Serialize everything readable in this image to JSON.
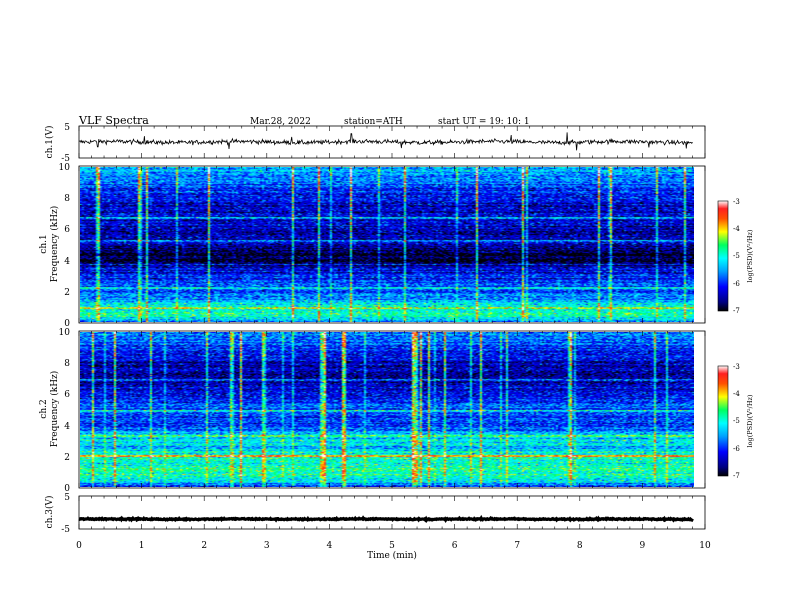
{
  "header": {
    "title": "VLF  Spectra",
    "date": "Mar.28, 2022",
    "station": "station=ATH",
    "start": "start  UT  =    19: 10: 1"
  },
  "chart_data": [
    {
      "type": "line",
      "name": "ch1-waveform",
      "ylabel": "ch.1(V)",
      "ylim": [
        -5,
        5
      ],
      "yticks": [
        "5",
        "-5"
      ],
      "x_range": [
        0,
        9.8
      ],
      "y_mean": 0,
      "y_noise": 0.7,
      "spikes": [
        {
          "x": 0.3,
          "y": -1.5
        },
        {
          "x": 1.05,
          "y": 1.8
        },
        {
          "x": 2.4,
          "y": -2.2
        },
        {
          "x": 3.4,
          "y": 1.6
        },
        {
          "x": 4.35,
          "y": 2.6
        },
        {
          "x": 5.15,
          "y": -1.9
        },
        {
          "x": 6.9,
          "y": 2.2
        },
        {
          "x": 7.8,
          "y": 3.0
        },
        {
          "x": 7.95,
          "y": -2.6
        },
        {
          "x": 9.1,
          "y": -1.7
        },
        {
          "x": 9.7,
          "y": -2.0
        }
      ]
    },
    {
      "type": "heatmap",
      "name": "ch1-spectrogram",
      "ylabel_top": "ch.1",
      "ylabel": "Frequency (kHz)",
      "ylim": [
        0,
        10
      ],
      "yticks": [
        "0",
        "2",
        "4",
        "6",
        "8",
        "10"
      ],
      "x_range": [
        0,
        9.8
      ],
      "colorbar": {
        "label": "log(PSD)(V²/Hz)",
        "range": [
          -7,
          -3
        ],
        "ticks": [
          "-3",
          "-4",
          "-5",
          "-6",
          "-7"
        ]
      },
      "band_profile": [
        {
          "f": 10.0,
          "level": -5.4
        },
        {
          "f": 9.0,
          "level": -5.8
        },
        {
          "f": 8.0,
          "level": -6.2
        },
        {
          "f": 7.0,
          "level": -6.4
        },
        {
          "f": 6.5,
          "level": -6.3
        },
        {
          "f": 6.0,
          "level": -6.5
        },
        {
          "f": 5.0,
          "level": -6.4
        },
        {
          "f": 4.5,
          "level": -6.9
        },
        {
          "f": 4.0,
          "level": -6.9
        },
        {
          "f": 3.5,
          "level": -6.4
        },
        {
          "f": 3.0,
          "level": -6.1
        },
        {
          "f": 2.5,
          "level": -6.0
        },
        {
          "f": 2.0,
          "level": -5.9
        },
        {
          "f": 1.5,
          "level": -5.6
        },
        {
          "f": 1.0,
          "level": -5.0
        },
        {
          "f": 0.5,
          "level": -4.8
        },
        {
          "f": 0.0,
          "level": -5.5
        }
      ],
      "tones_khz": [
        0.9,
        2.2,
        3.7,
        5.2,
        6.7
      ]
    },
    {
      "type": "heatmap",
      "name": "ch2-spectrogram",
      "ylabel_top": "ch.2",
      "ylabel": "Frequency (kHz)",
      "ylim": [
        0,
        10
      ],
      "yticks": [
        "0",
        "2",
        "4",
        "6",
        "8",
        "10"
      ],
      "x_range": [
        0,
        9.8
      ],
      "colorbar": {
        "label": "log(PSD)(V²/Hz)",
        "range": [
          -7,
          -3
        ],
        "ticks": [
          "-3",
          "-4",
          "-5",
          "-6",
          "-7"
        ]
      },
      "band_profile": [
        {
          "f": 10.0,
          "level": -5.6
        },
        {
          "f": 9.0,
          "level": -6.0
        },
        {
          "f": 8.0,
          "level": -6.4
        },
        {
          "f": 7.0,
          "level": -6.5
        },
        {
          "f": 6.5,
          "level": -6.3
        },
        {
          "f": 6.0,
          "level": -6.2
        },
        {
          "f": 5.0,
          "level": -5.8
        },
        {
          "f": 4.5,
          "level": -6.0
        },
        {
          "f": 4.0,
          "level": -5.9
        },
        {
          "f": 3.5,
          "level": -5.5
        },
        {
          "f": 3.0,
          "level": -5.2
        },
        {
          "f": 2.5,
          "level": -5.4
        },
        {
          "f": 2.0,
          "level": -4.8
        },
        {
          "f": 1.5,
          "level": -5.0
        },
        {
          "f": 1.0,
          "level": -4.7
        },
        {
          "f": 0.5,
          "level": -5.0
        },
        {
          "f": 0.0,
          "level": -5.8
        }
      ],
      "tones_khz": [
        2.0,
        3.3,
        4.9,
        6.9
      ]
    },
    {
      "type": "line",
      "name": "ch3-waveform",
      "ylabel": "ch.3(V)",
      "ylim": [
        -5,
        5
      ],
      "yticks": [
        "5",
        "-5"
      ],
      "x_range": [
        0,
        9.8
      ],
      "y_mean": -2,
      "y_noise": 0.2,
      "xlabel": "Time  (min)",
      "xlim": [
        0,
        10
      ],
      "xticks": [
        "0",
        "1",
        "2",
        "3",
        "4",
        "5",
        "6",
        "7",
        "8",
        "9",
        "10"
      ]
    }
  ]
}
